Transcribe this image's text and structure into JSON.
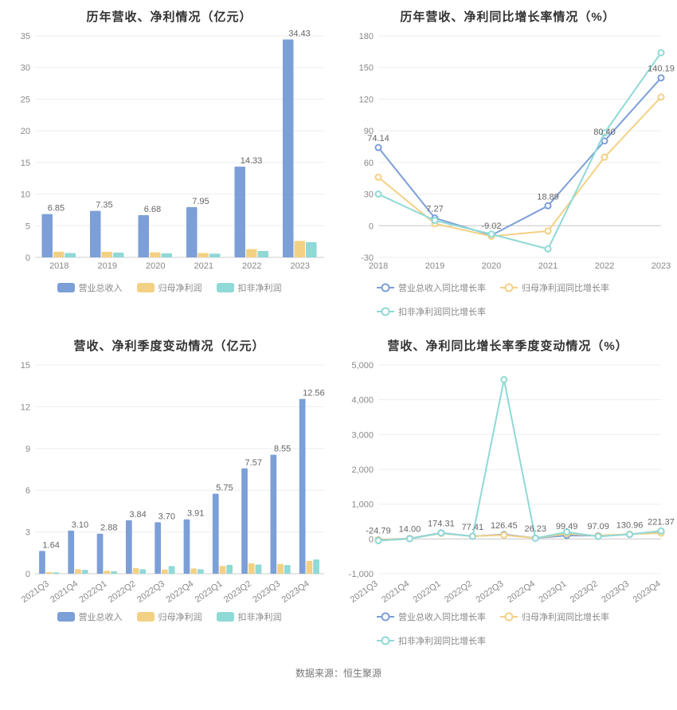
{
  "colors": {
    "series1": "#7c9fd8",
    "series2": "#f3d184",
    "series3": "#8fd9d6",
    "axis": "#cccccc",
    "grid": "#eeeeee",
    "text": "#888888",
    "value": "#666666"
  },
  "typography": {
    "title_fontsize": 15,
    "label_fontsize": 11
  },
  "chart1": {
    "type": "bar",
    "title": "历年营收、净利情况（亿元）",
    "categories": [
      "2018",
      "2019",
      "2020",
      "2021",
      "2022",
      "2023"
    ],
    "ylim": [
      0,
      35
    ],
    "ytick_step": 5,
    "series": [
      {
        "name": "营业总收入",
        "color": "#7c9fd8",
        "values": [
          6.85,
          7.35,
          6.68,
          7.95,
          14.33,
          34.43
        ],
        "label_vals": [
          "6.85",
          "7.35",
          "6.68",
          "7.95",
          "14.33",
          "34.43"
        ]
      },
      {
        "name": "归母净利润",
        "color": "#f3d184",
        "values": [
          0.9,
          0.9,
          0.8,
          0.7,
          1.3,
          2.6
        ]
      },
      {
        "name": "扣非净利润",
        "color": "#8fd9d6",
        "values": [
          0.7,
          0.75,
          0.65,
          0.6,
          1.0,
          2.4
        ]
      }
    ],
    "legend": [
      "营业总收入",
      "归母净利润",
      "扣非净利润"
    ],
    "bar_group_width": 0.72
  },
  "chart2": {
    "type": "line",
    "title": "历年营收、净利同比增长率情况（%）",
    "categories": [
      "2018",
      "2019",
      "2020",
      "2021",
      "2022",
      "2023"
    ],
    "ylim": [
      -30,
      180
    ],
    "ytick_step": 30,
    "series": [
      {
        "name": "营业总收入同比增长率",
        "color": "#7c9fd8",
        "values": [
          74.14,
          7.27,
          -9.02,
          18.89,
          80.4,
          140.19
        ],
        "label_vals": [
          "74.14",
          "7.27",
          "-9.02",
          "18.89",
          "80.40",
          "140.19"
        ]
      },
      {
        "name": "归母净利润同比增长率",
        "color": "#f3d184",
        "values": [
          46,
          2,
          -10,
          -5,
          65,
          122
        ]
      },
      {
        "name": "扣非净利润同比增长率",
        "color": "#8fd9d6",
        "values": [
          30,
          5,
          -8,
          -22,
          88,
          164
        ]
      }
    ],
    "legend": [
      "营业总收入同比增长率",
      "归母净利润同比增长率",
      "扣非净利润同比增长率"
    ]
  },
  "chart3": {
    "type": "bar",
    "title": "营收、净利季度变动情况（亿元）",
    "categories": [
      "2021Q3",
      "2021Q4",
      "2022Q1",
      "2022Q2",
      "2022Q3",
      "2022Q4",
      "2023Q1",
      "2023Q2",
      "2023Q3",
      "2023Q4"
    ],
    "ylim": [
      0,
      15
    ],
    "ytick_step": 3,
    "x_rotate": -35,
    "series": [
      {
        "name": "营业总收入",
        "color": "#7c9fd8",
        "values": [
          1.64,
          3.1,
          2.88,
          3.84,
          3.7,
          3.91,
          5.75,
          7.57,
          8.55,
          12.56
        ],
        "label_vals": [
          "1.64",
          "3.10",
          "2.88",
          "3.84",
          "3.70",
          "3.91",
          "5.75",
          "7.57",
          "8.55",
          "12.56"
        ]
      },
      {
        "name": "归母净利润",
        "color": "#f3d184",
        "values": [
          0.12,
          0.33,
          0.22,
          0.4,
          0.3,
          0.38,
          0.56,
          0.75,
          0.7,
          0.92
        ]
      },
      {
        "name": "扣非净利润",
        "color": "#8fd9d6",
        "values": [
          0.1,
          0.28,
          0.18,
          0.33,
          0.55,
          0.32,
          0.64,
          0.66,
          0.62,
          1.02
        ]
      }
    ],
    "legend": [
      "营业总收入",
      "归母净利润",
      "扣非净利润"
    ],
    "bar_group_width": 0.72
  },
  "chart4": {
    "type": "line",
    "title": "营收、净利同比增长率季度变动情况（%）",
    "categories": [
      "2021Q3",
      "2021Q4",
      "2022Q1",
      "2022Q2",
      "2022Q3",
      "2022Q4",
      "2023Q1",
      "2023Q2",
      "2023Q3",
      "2023Q4"
    ],
    "ylim": [
      -1000,
      5000
    ],
    "ytick_step": 1000,
    "x_rotate": -35,
    "series": [
      {
        "name": "营业总收入同比增长率",
        "color": "#7c9fd8",
        "values": [
          -24.79,
          14.0,
          174.31,
          77.41,
          126.45,
          26.23,
          99.49,
          97.09,
          130.96,
          221.37
        ],
        "label_vals": [
          "-24.79",
          "14.00",
          "174.31",
          "77.41",
          "126.45",
          "26.23",
          "99.49",
          "97.09",
          "130.96",
          "221.37"
        ]
      },
      {
        "name": "归母净利润同比增长率",
        "color": "#f3d184",
        "values": [
          -30,
          10,
          160,
          80,
          110,
          25,
          150,
          90,
          140,
          165
        ]
      },
      {
        "name": "扣非净利润同比增长率",
        "color": "#8fd9d6",
        "values": [
          -50,
          5,
          170,
          75,
          4580,
          20,
          200,
          70,
          130,
          230
        ]
      }
    ],
    "legend": [
      "营业总收入同比增长率",
      "归母净利润同比增长率",
      "扣非净利润同比增长率"
    ]
  },
  "footer": "数据来源：恒生聚源"
}
